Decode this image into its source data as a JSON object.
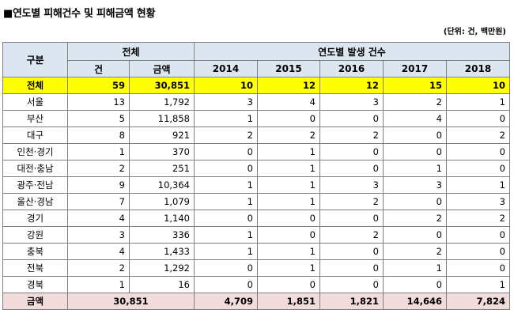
{
  "title": "■연도별 피해건수 및 피해금액 현황",
  "unit": "(단위: 건, 백만원)",
  "headers": {
    "category": "구분",
    "total": "전체",
    "yearly": "연도별 발생 건수",
    "count": "건",
    "amount": "금액",
    "years": [
      "2014",
      "2015",
      "2016",
      "2017",
      "2018"
    ]
  },
  "total_row": {
    "label": "전체",
    "count": "59",
    "amount": "30,851",
    "values": [
      "10",
      "12",
      "12",
      "15",
      "10"
    ]
  },
  "rows": [
    {
      "label": "서울",
      "count": "13",
      "amount": "1,792",
      "values": [
        "3",
        "4",
        "3",
        "2",
        "1"
      ]
    },
    {
      "label": "부산",
      "count": "5",
      "amount": "11,858",
      "values": [
        "1",
        "0",
        "0",
        "4",
        "0"
      ]
    },
    {
      "label": "대구",
      "count": "8",
      "amount": "921",
      "values": [
        "2",
        "2",
        "2",
        "0",
        "2"
      ]
    },
    {
      "label": "인천·경기",
      "count": "1",
      "amount": "370",
      "values": [
        "0",
        "1",
        "0",
        "0",
        "0"
      ]
    },
    {
      "label": "대전·충남",
      "count": "2",
      "amount": "251",
      "values": [
        "0",
        "1",
        "0",
        "1",
        "0"
      ]
    },
    {
      "label": "광주·전남",
      "count": "9",
      "amount": "10,364",
      "values": [
        "1",
        "1",
        "3",
        "3",
        "1"
      ]
    },
    {
      "label": "울산·경남",
      "count": "7",
      "amount": "1,079",
      "values": [
        "1",
        "1",
        "2",
        "0",
        "3"
      ]
    },
    {
      "label": "경기",
      "count": "4",
      "amount": "1,140",
      "values": [
        "0",
        "0",
        "0",
        "2",
        "2"
      ]
    },
    {
      "label": "강원",
      "count": "3",
      "amount": "336",
      "values": [
        "1",
        "0",
        "2",
        "0",
        "0"
      ]
    },
    {
      "label": "충북",
      "count": "4",
      "amount": "1,433",
      "values": [
        "1",
        "1",
        "0",
        "2",
        "0"
      ]
    },
    {
      "label": "전북",
      "count": "2",
      "amount": "1,292",
      "values": [
        "0",
        "1",
        "0",
        "1",
        "0"
      ]
    },
    {
      "label": "경북",
      "count": "1",
      "amount": "16",
      "values": [
        "0",
        "0",
        "0",
        "0",
        "1"
      ]
    }
  ],
  "amount_row": {
    "label": "금액",
    "total": "30,851",
    "values": [
      "4,709",
      "1,851",
      "1,821",
      "14,646",
      "7,824"
    ]
  }
}
